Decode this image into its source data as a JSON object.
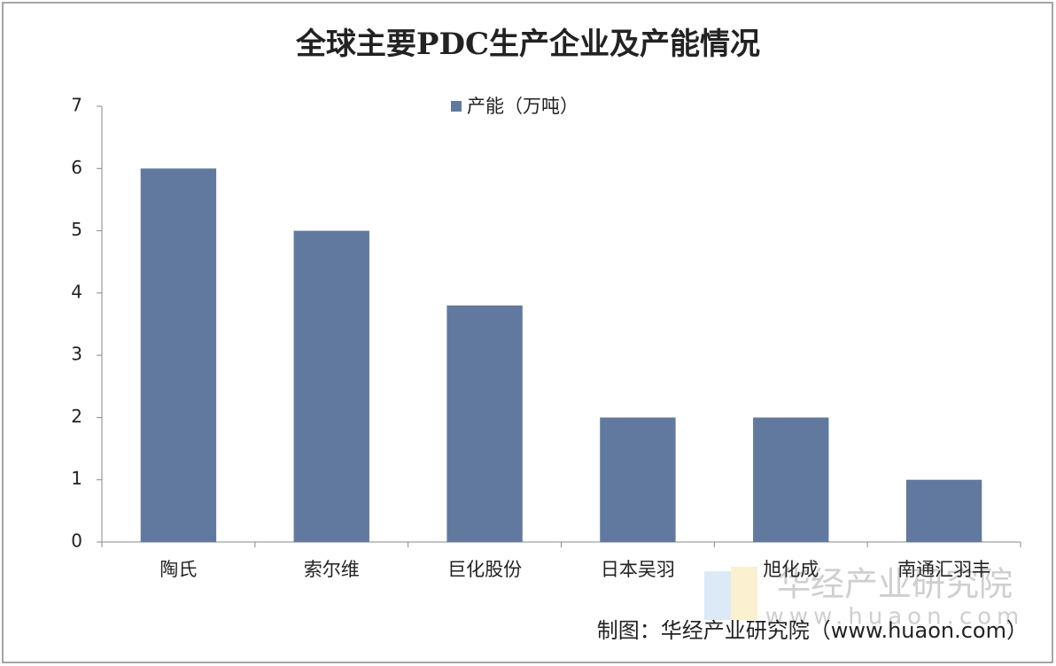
{
  "chart_data": {
    "type": "bar",
    "title": "全球主要PDC生产企业及产能情况",
    "categories": [
      "陶氏",
      "索尔维",
      "巨化股份",
      "日本吴羽",
      "旭化成",
      "南通汇羽丰"
    ],
    "series": [
      {
        "name": "产能（万吨）",
        "color": "#62799f",
        "values": [
          6,
          5,
          3.8,
          2,
          2,
          1
        ]
      }
    ],
    "ylim": [
      0,
      7
    ],
    "yticks": [
      0,
      1,
      2,
      3,
      4,
      5,
      6,
      7
    ],
    "grid": false,
    "legend": "top",
    "source": "制图：华经产业研究院（www.huaon.com）",
    "watermark": {
      "name": "华经产业研究院",
      "url": "www.huaon.com"
    }
  }
}
